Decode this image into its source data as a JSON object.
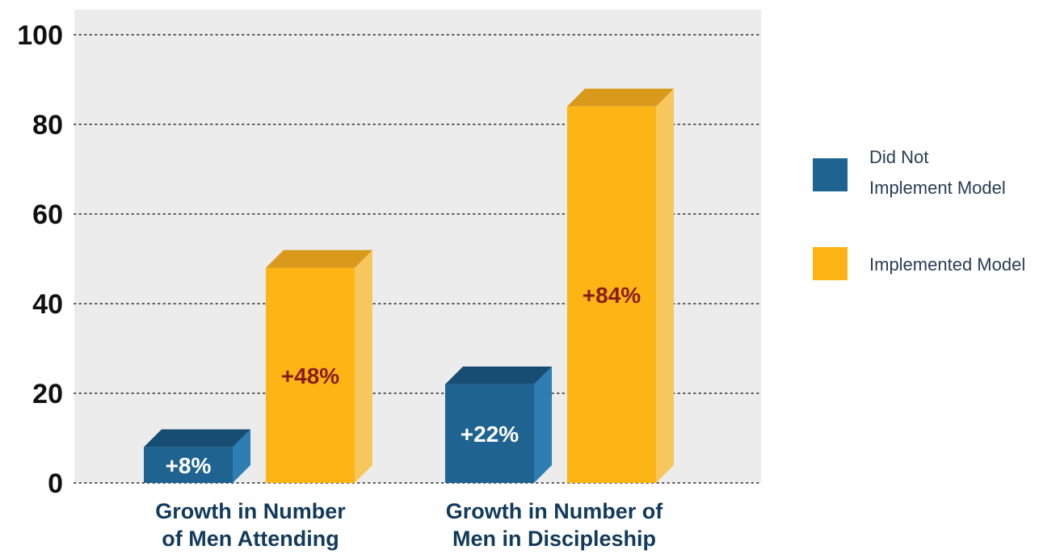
{
  "colors": {
    "did_not": "#1f6391",
    "did_not_top": "#174d72",
    "did_not_side": "#2c7eb3",
    "implemented": "#fcb515",
    "implemented_top": "#d9991a",
    "implemented_side": "#f7c75e",
    "label_light": "#ffffff",
    "label_dark": "#8a1c17",
    "plot_bg": "#ececec",
    "grid": "#555555"
  },
  "chart_data": {
    "type": "bar",
    "categories": [
      [
        "Growth in Number",
        "of Men Attending"
      ],
      [
        "Growth in Number of",
        "Men in Discipleship"
      ]
    ],
    "series": [
      {
        "name": [
          "Did Not",
          "Implement Model"
        ],
        "values": [
          8,
          22
        ],
        "labels": [
          "+8%",
          "+22%"
        ]
      },
      {
        "name": [
          "Implemented Model"
        ],
        "values": [
          48,
          84
        ],
        "labels": [
          "+48%",
          "+84%"
        ]
      }
    ],
    "yticks": [
      "0",
      "20",
      "40",
      "60",
      "80",
      "100"
    ],
    "ylim": [
      0,
      100
    ],
    "grid": true,
    "legend_position": "right"
  }
}
